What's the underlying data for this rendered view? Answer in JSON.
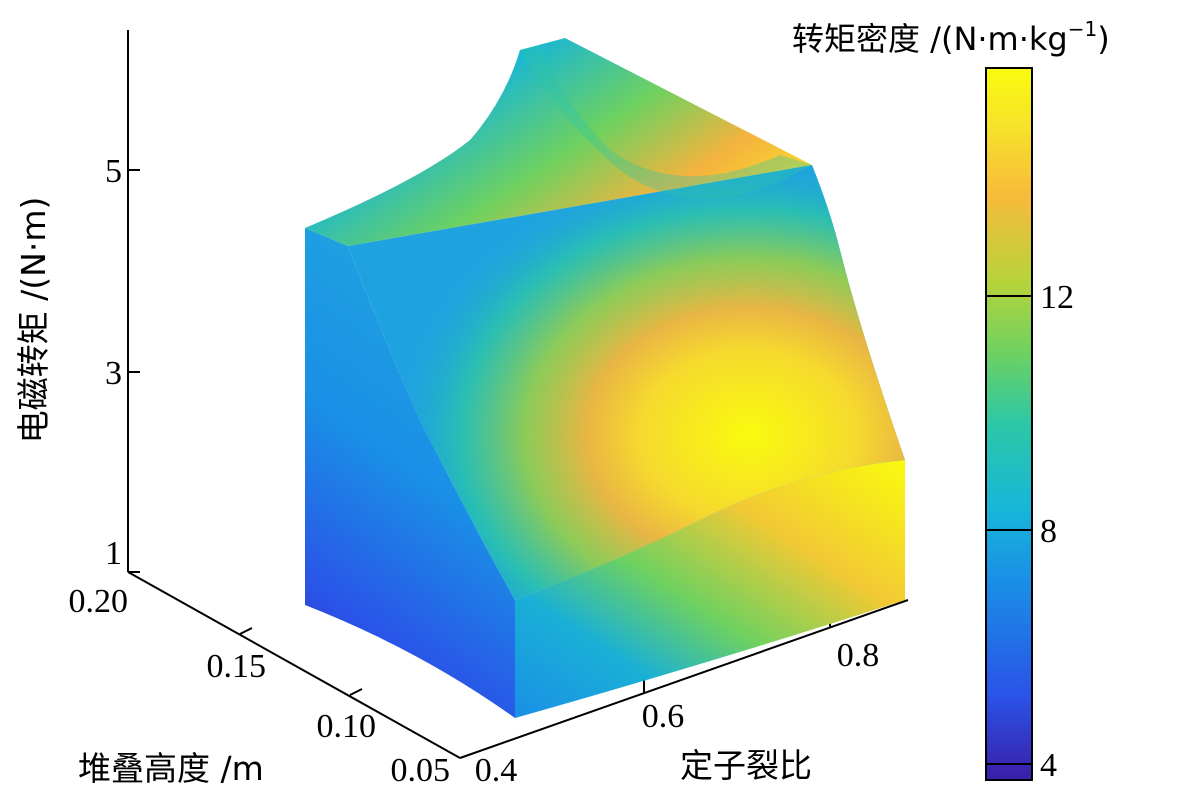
{
  "chart_data": {
    "type": "surface3d",
    "axes": {
      "z": {
        "label": "电磁转矩 /(N·m)",
        "ticks": [
          1,
          3,
          5
        ],
        "tick_labels": [
          "1",
          "3",
          "5"
        ],
        "range": [
          1,
          6.5
        ]
      },
      "y": {
        "label": "堆叠高度 /m",
        "ticks": [
          0.05,
          0.1,
          0.15,
          0.2
        ],
        "tick_labels": [
          "0.05",
          "0.10",
          "0.15",
          "0.20"
        ],
        "range": [
          0.05,
          0.2
        ]
      },
      "x": {
        "label": "定子裂比",
        "ticks": [
          0.4,
          0.6,
          0.8
        ],
        "tick_labels": [
          "0.4",
          "0.6",
          "0.8"
        ],
        "range": [
          0.4,
          0.85
        ]
      }
    },
    "colorbar": {
      "label_main": "转矩密度 /(N·m·kg",
      "label_sup": "−1",
      "label_end": ")",
      "ticks": [
        4,
        8,
        12
      ],
      "tick_labels": [
        "4",
        "8",
        "12"
      ],
      "range": [
        3.5,
        16
      ],
      "colormap": [
        "#3a1ea8",
        "#2a54e8",
        "#1a8fe6",
        "#17b6d9",
        "#2cc7a6",
        "#6ed160",
        "#b7d33a",
        "#f7bb3a",
        "#f6e32a",
        "#f9fb0e"
      ]
    },
    "surface": {
      "colors": {
        "low": "#3a1ea8",
        "mid": "#1fa3e0",
        "high": "#f9fb0e",
        "peak_orange": "#f7bb3a"
      }
    }
  }
}
